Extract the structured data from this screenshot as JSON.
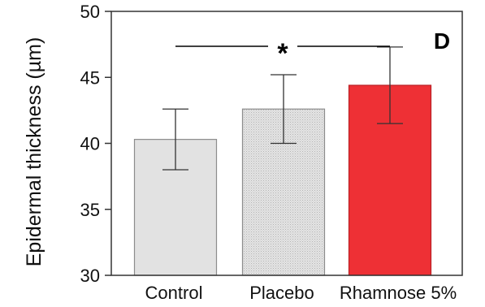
{
  "chart_data": {
    "type": "bar",
    "panel_label": "D",
    "ylabel": "Epidermal thickness (µm)",
    "xlabel": "",
    "categories": [
      "Control",
      "Placebo",
      "Rhamnose 5%"
    ],
    "values": [
      40.3,
      42.6,
      44.4
    ],
    "error": [
      2.3,
      2.6,
      2.9
    ],
    "ylim": [
      30,
      50
    ],
    "yticks": [
      "30",
      "35",
      "40",
      "45",
      "50"
    ],
    "bar_colors": [
      "#e2e2e2",
      "#dcdcdc",
      "#ee3035"
    ],
    "bar_patterns": [
      "solid",
      "dotted",
      "solid"
    ],
    "grid": false,
    "significance": {
      "label": "*",
      "from_category": "Control",
      "to_category": "Rhamnose 5%"
    }
  }
}
